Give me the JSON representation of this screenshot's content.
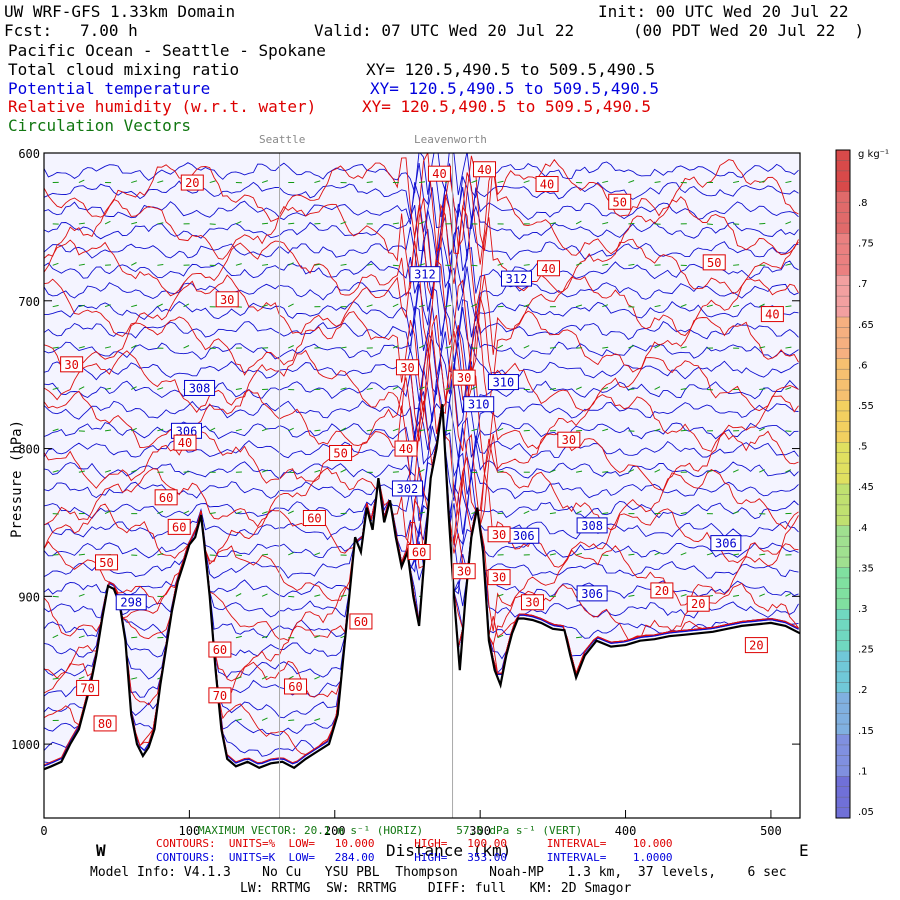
{
  "header": {
    "title": "UW WRF-GFS 1.33km Domain",
    "init": "Init: 00 UTC Wed 20 Jul 22",
    "fcst_label": "Fcst:",
    "fcst_value": "7.00 h",
    "valid": "Valid: 07 UTC Wed 20 Jul 22",
    "valid_local": "(00 PDT Wed 20 Jul 22  )",
    "region": "Pacific Ocean - Seattle - Spokane"
  },
  "fields": [
    {
      "name": "Total cloud mixing ratio",
      "xy": "XY= 120.5,490.5 to 509.5,490.5",
      "color": "#000000"
    },
    {
      "name": "Potential temperature",
      "xy": "XY= 120.5,490.5 to 509.5,490.5",
      "color": "#0000dd"
    },
    {
      "name": "Relative humidity (w.r.t. water)",
      "xy": "XY= 120.5,490.5 to 509.5,490.5",
      "color": "#dd0000"
    },
    {
      "name": "Circulation Vectors",
      "xy": "",
      "color": "#117711"
    }
  ],
  "chart_data": {
    "type": "cross-section",
    "x_label": "Distance (km)",
    "x_ticks": [
      0,
      100,
      200,
      300,
      400,
      500
    ],
    "xlim": [
      0,
      520
    ],
    "y_ticks": [
      600,
      700,
      800,
      900,
      1000
    ],
    "ylim": [
      600,
      1050
    ],
    "y_label": "Pressure (hPa)",
    "west_label": "W",
    "east_label": "E",
    "locations": [
      {
        "name": "Seattle",
        "x": 162
      },
      {
        "name": "Leavenworth",
        "x": 281
      }
    ],
    "theta_labels": [
      {
        "text": "312",
        "x": 262,
        "p": 682
      },
      {
        "text": "312",
        "x": 325,
        "p": 685
      },
      {
        "text": "310",
        "x": 316,
        "p": 755
      },
      {
        "text": "310",
        "x": 299,
        "p": 770
      },
      {
        "text": "308",
        "x": 107,
        "p": 759
      },
      {
        "text": "306",
        "x": 98,
        "p": 788
      },
      {
        "text": "302",
        "x": 250,
        "p": 827
      },
      {
        "text": "306",
        "x": 330,
        "p": 859
      },
      {
        "text": "308",
        "x": 377,
        "p": 852
      },
      {
        "text": "306",
        "x": 377,
        "p": 898
      },
      {
        "text": "306",
        "x": 469,
        "p": 864
      },
      {
        "text": "298",
        "x": 60,
        "p": 904
      }
    ],
    "rh_labels": [
      {
        "text": "20",
        "x": 102,
        "p": 620
      },
      {
        "text": "40",
        "x": 272,
        "p": 614
      },
      {
        "text": "40",
        "x": 303,
        "p": 611
      },
      {
        "text": "40",
        "x": 346,
        "p": 621
      },
      {
        "text": "50",
        "x": 396,
        "p": 633
      },
      {
        "text": "40",
        "x": 347,
        "p": 678
      },
      {
        "text": "50",
        "x": 461,
        "p": 674
      },
      {
        "text": "40",
        "x": 501,
        "p": 709
      },
      {
        "text": "30",
        "x": 126,
        "p": 699
      },
      {
        "text": "30",
        "x": 19,
        "p": 743
      },
      {
        "text": "30",
        "x": 250,
        "p": 745
      },
      {
        "text": "30",
        "x": 289,
        "p": 752
      },
      {
        "text": "30",
        "x": 361,
        "p": 794
      },
      {
        "text": "40",
        "x": 97,
        "p": 796
      },
      {
        "text": "50",
        "x": 204,
        "p": 803
      },
      {
        "text": "40",
        "x": 249,
        "p": 800
      },
      {
        "text": "60",
        "x": 84,
        "p": 833
      },
      {
        "text": "60",
        "x": 186,
        "p": 847
      },
      {
        "text": "60",
        "x": 93,
        "p": 853
      },
      {
        "text": "50",
        "x": 43,
        "p": 877
      },
      {
        "text": "30",
        "x": 313,
        "p": 858
      },
      {
        "text": "60",
        "x": 258,
        "p": 870
      },
      {
        "text": "30",
        "x": 289,
        "p": 883
      },
      {
        "text": "30",
        "x": 313,
        "p": 887
      },
      {
        "text": "30",
        "x": 336,
        "p": 904
      },
      {
        "text": "20",
        "x": 425,
        "p": 896
      },
      {
        "text": "20",
        "x": 450,
        "p": 905
      },
      {
        "text": "60",
        "x": 218,
        "p": 917
      },
      {
        "text": "60",
        "x": 121,
        "p": 936
      },
      {
        "text": "70",
        "x": 121,
        "p": 967
      },
      {
        "text": "60",
        "x": 173,
        "p": 961
      },
      {
        "text": "70",
        "x": 30,
        "p": 962
      },
      {
        "text": "80",
        "x": 42,
        "p": 986
      },
      {
        "text": "20",
        "x": 490,
        "p": 933
      }
    ]
  },
  "colorbar": {
    "unit": "g kg⁻¹",
    "labels": [
      ".8",
      ".75",
      ".7",
      ".65",
      ".6",
      ".55",
      ".5",
      ".45",
      ".4",
      ".35",
      ".3",
      ".25",
      ".2",
      ".15",
      ".1",
      ".05"
    ]
  },
  "footer": {
    "max_vector": "MAXIMUM VECTOR: 20.1 m s⁻¹ (HORIZ)     57.5 dPa s⁻¹ (VERT)",
    "rh_contours": "CONTOURS:  UNITS=%  LOW=   10.000      HIGH=   100.00      INTERVAL=    10.000",
    "theta_contours": "CONTOURS:  UNITS=K  LOW=   284.00      HIGH=   353.00      INTERVAL=    1.0000",
    "model_info": "Model Info: V4.1.3    No Cu   YSU PBL  Thompson    Noah-MP   1.3 km,  37 levels,    6 sec",
    "model_info2": "LW: RRTMG  SW: RRTMG    DIFF: full   KM: 2D Smagor"
  }
}
